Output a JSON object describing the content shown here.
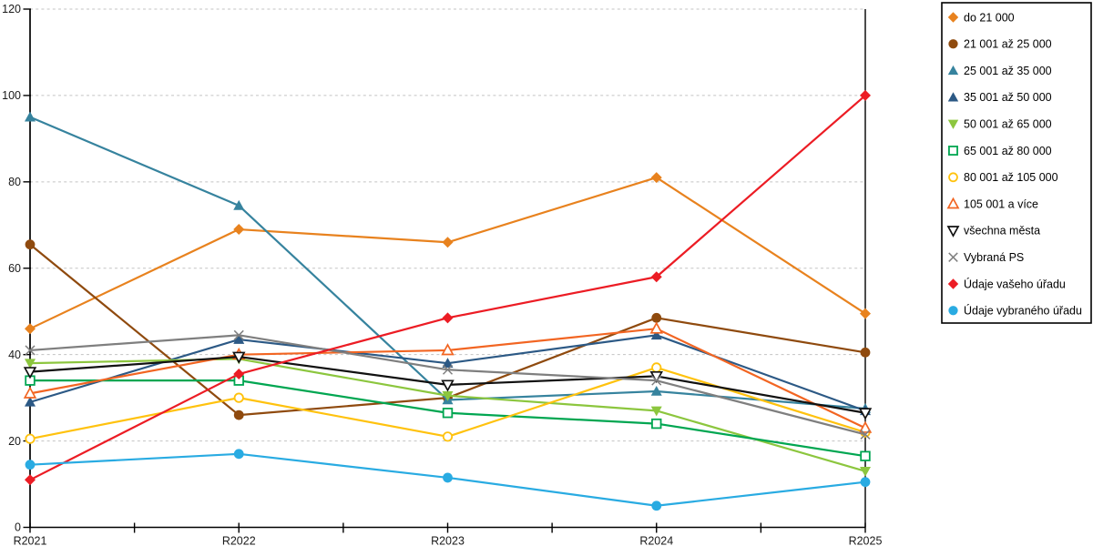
{
  "chart_data": {
    "type": "line",
    "title": "",
    "xlabel": "",
    "ylabel": "",
    "categories": [
      "R2021",
      "R2022",
      "R2023",
      "R2024",
      "R2025"
    ],
    "ylim": [
      0,
      120
    ],
    "ytick_step": 20,
    "y_ticks": [
      "0",
      "20",
      "40",
      "60",
      "80",
      "100",
      "120"
    ],
    "grid": "horizontal-dashed",
    "legend_position": "right",
    "series": [
      {
        "id": "do-21-000",
        "name": "do 21 000",
        "marker": "diamond-filled",
        "color": "#E8821E",
        "values": [
          46,
          69,
          66,
          81,
          49.5
        ]
      },
      {
        "id": "21-001-az-25-000",
        "name": "21 001 až 25 000",
        "marker": "circle-filled",
        "color": "#8F4A0E",
        "values": [
          65.5,
          26,
          30,
          48.5,
          40.5
        ]
      },
      {
        "id": "25-001-az-35-000",
        "name": "25 001 až 35 000",
        "marker": "triangle-up-filled",
        "color": "#36839E",
        "values": [
          95,
          74.5,
          29.5,
          31.5,
          27.5
        ]
      },
      {
        "id": "35-001-az-50-000",
        "name": "35 001 až 50 000",
        "marker": "triangle-up-filled",
        "color": "#2C5985",
        "values": [
          29,
          43.5,
          38,
          44.5,
          27
        ]
      },
      {
        "id": "50-001-az-65-000",
        "name": "50 001 až 65 000",
        "marker": "triangle-down-filled",
        "color": "#8CC63E",
        "values": [
          38,
          39,
          30.5,
          27,
          13
        ]
      },
      {
        "id": "65-001-az-80-000",
        "name": "65 001 až 80 000",
        "marker": "square-open",
        "color": "#00A651",
        "values": [
          34,
          34,
          26.5,
          24,
          16.5
        ]
      },
      {
        "id": "80-001-az-105-000",
        "name": "80 001 až 105 000",
        "marker": "circle-open",
        "color": "#FFC20E",
        "values": [
          20.5,
          30,
          21,
          37,
          22
        ]
      },
      {
        "id": "105-001-a-vice",
        "name": "105 001 a více",
        "marker": "triangle-up-open",
        "color": "#F26522",
        "values": [
          31,
          40,
          41,
          46,
          23
        ]
      },
      {
        "id": "vsechna-mesta",
        "name": "všechna města",
        "marker": "triangle-down-open",
        "color": "#111111",
        "values": [
          36,
          39.5,
          33,
          35,
          26.5
        ]
      },
      {
        "id": "vybrana-ps",
        "name": "Vybraná PS",
        "marker": "x",
        "color": "#7F7F7F",
        "values": [
          41,
          44.5,
          36.5,
          34,
          21.5
        ]
      },
      {
        "id": "udaje-vaseho-uradu",
        "name": "Údaje vašeho úřadu",
        "marker": "diamond-filled",
        "color": "#EC1C24",
        "values": [
          11,
          35.5,
          48.5,
          58,
          100
        ]
      },
      {
        "id": "udaje-vybraneho-uradu",
        "name": "Údaje vybraného úřadu",
        "marker": "circle-filled",
        "color": "#29ABE2",
        "values": [
          14.5,
          17,
          11.5,
          5,
          10.5
        ]
      }
    ],
    "style": {
      "grid_color": "#C3C3C3",
      "axis_color": "#000000",
      "label_color": "#1A1A1A",
      "background": "#FFFFFF"
    }
  }
}
